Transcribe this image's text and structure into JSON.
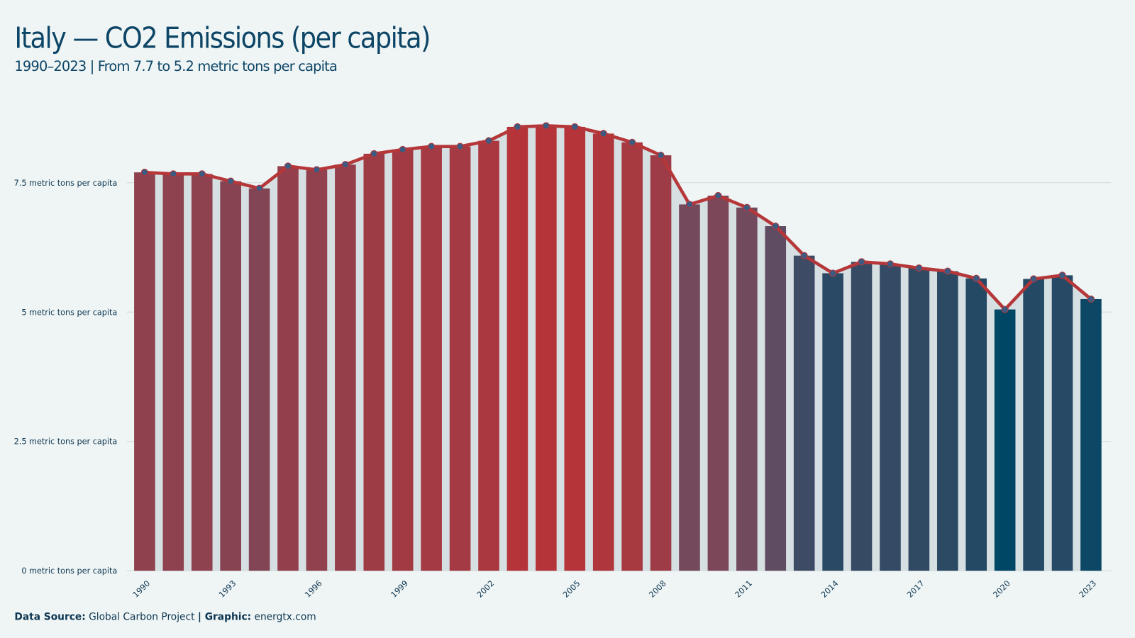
{
  "chart_data": {
    "type": "bar_line",
    "title": "Italy — CO2 Emissions (per capita)",
    "subtitle": "1990–2023 | From 7.7 to 5.2 metric tons per capita",
    "categories": [
      "1990",
      null,
      null,
      "1993",
      null,
      null,
      "1996",
      null,
      null,
      "1999",
      null,
      null,
      "2002",
      null,
      null,
      "2005",
      null,
      null,
      "2008",
      null,
      null,
      "2011",
      null,
      null,
      "2014",
      null,
      null,
      "2017",
      null,
      null,
      "2020",
      null,
      null,
      "2023"
    ],
    "values": [
      7.7,
      7.67,
      7.67,
      7.53,
      7.39,
      7.82,
      7.75,
      7.85,
      8.06,
      8.14,
      8.2,
      8.2,
      8.31,
      8.58,
      8.6,
      8.58,
      8.45,
      8.28,
      8.03,
      7.08,
      7.25,
      7.02,
      6.66,
      6.09,
      5.75,
      5.97,
      5.93,
      5.85,
      5.79,
      5.65,
      5.05,
      5.64,
      5.71,
      5.25
    ],
    "color_scale": [
      "#004766",
      "#6a4d62",
      "#b5343a"
    ],
    "line_color": "#b5373a",
    "point_color": "#3d5a80",
    "area_color": "#d6dfe2",
    "ylim": [
      0,
      9.2
    ],
    "yticks": [
      {
        "value": 0,
        "label": "0 metric tons per capita"
      },
      {
        "value": 2.5,
        "label": "2.5 metric tons per capita"
      },
      {
        "value": 5,
        "label": "5 metric tons per capita"
      },
      {
        "value": 7.5,
        "label": "7.5 metric tons per capita"
      }
    ],
    "grid": true,
    "footer": {
      "source_label": "Data Source:",
      "source": "Global Carbon Project",
      "graphic_label": "| Graphic:",
      "graphic": "energtx.com"
    }
  }
}
